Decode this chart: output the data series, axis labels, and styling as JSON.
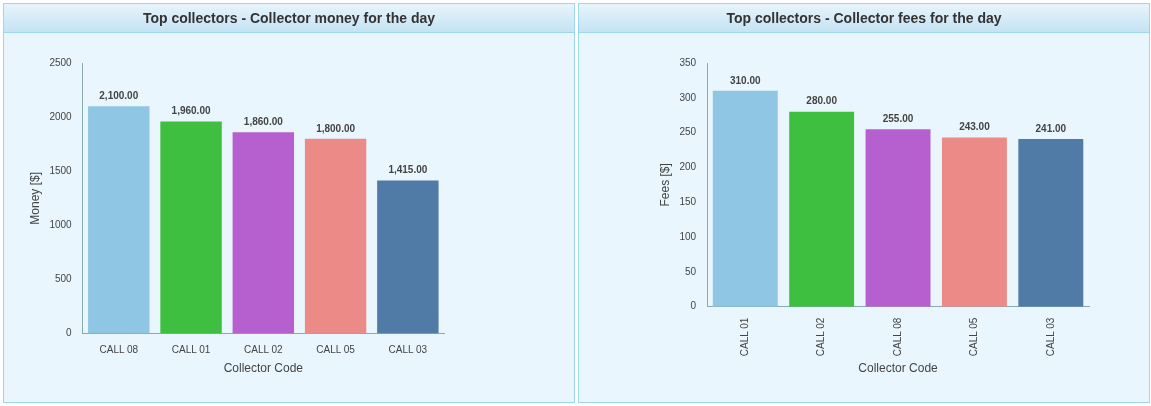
{
  "chart_data": [
    {
      "type": "bar",
      "title": "Top collectors - Collector money for the day",
      "xlabel": "Collector Code",
      "ylabel": "Money [$]",
      "categories": [
        "CALL 08",
        "CALL 01",
        "CALL 02",
        "CALL 05",
        "CALL 03"
      ],
      "values": [
        2100,
        1960,
        1860,
        1800,
        1415
      ],
      "colors": [
        "#8ec6e4",
        "#3fbf3f",
        "#b65fcf",
        "#ec8a88",
        "#4f7ba6"
      ],
      "value_labels": [
        "2,100.00",
        "1,960.00",
        "1,860.00",
        "1,800.00",
        "1,415.00"
      ],
      "ylim": [
        0,
        2500
      ],
      "yticks": [
        0,
        500,
        1000,
        1500,
        2000,
        2500
      ],
      "grid": false,
      "legend": false
    },
    {
      "type": "bar",
      "title": "Top collectors - Collector fees for the day",
      "xlabel": "Collector Code",
      "ylabel": "Fees [$]",
      "categories": [
        "CALL 01",
        "CALL 02",
        "CALL 08",
        "CALL 05",
        "CALL 03"
      ],
      "values": [
        310,
        280,
        255,
        243,
        241
      ],
      "colors": [
        "#8ec6e4",
        "#3fbf3f",
        "#b65fcf",
        "#ec8a88",
        "#4f7ba6"
      ],
      "value_labels": [
        "310.00",
        "280.00",
        "255.00",
        "243.00",
        "241.00"
      ],
      "ylim": [
        0,
        350
      ],
      "yticks": [
        0,
        50,
        100,
        150,
        200,
        250,
        300,
        350
      ],
      "grid": false,
      "legend": false
    }
  ]
}
